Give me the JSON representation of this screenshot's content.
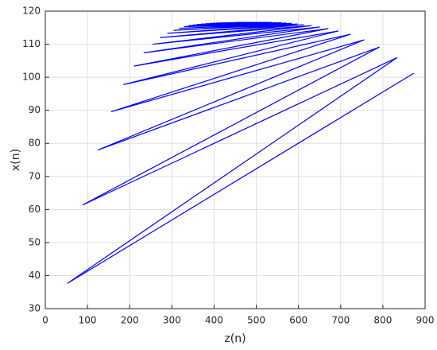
{
  "chart_data": {
    "type": "line",
    "xlabel": "z(n)",
    "ylabel": "x(n)",
    "x": [
      873,
      53,
      833,
      89,
      791,
      125,
      755,
      157,
      723,
      186,
      694,
      211,
      670,
      234,
      650,
      255,
      630,
      273,
      612,
      290,
      597,
      305,
      583,
      318,
      570,
      330,
      558,
      340,
      546,
      350,
      535,
      360,
      524,
      370,
      512,
      380,
      500,
      392,
      488,
      405,
      475,
      420,
      462,
      440,
      452
    ],
    "series": [
      {
        "color": "#0000ff",
        "values": [
          101.2,
          37.7,
          105.9,
          61.4,
          109.1,
          78.0,
          111.3,
          89.6,
          113.0,
          97.8,
          114.0,
          103.4,
          114.7,
          107.4,
          115.2,
          110.0,
          115.6,
          112.0,
          115.9,
          113.3,
          116.1,
          114.2,
          116.3,
          114.8,
          116.4,
          115.3,
          116.5,
          115.6,
          116.5,
          115.8,
          116.6,
          116.0,
          116.6,
          116.1,
          116.6,
          116.2,
          116.6,
          116.3,
          116.6,
          116.4,
          116.6,
          116.4,
          116.6,
          116.5,
          116.5
        ]
      }
    ],
    "xlim": [
      0,
      900
    ],
    "xticks": [
      0,
      100,
      200,
      300,
      400,
      500,
      600,
      700,
      800,
      900
    ],
    "ylim": [
      30,
      120
    ],
    "yticks": [
      30,
      40,
      50,
      60,
      70,
      80,
      90,
      100,
      110,
      120
    ],
    "grid": true
  }
}
